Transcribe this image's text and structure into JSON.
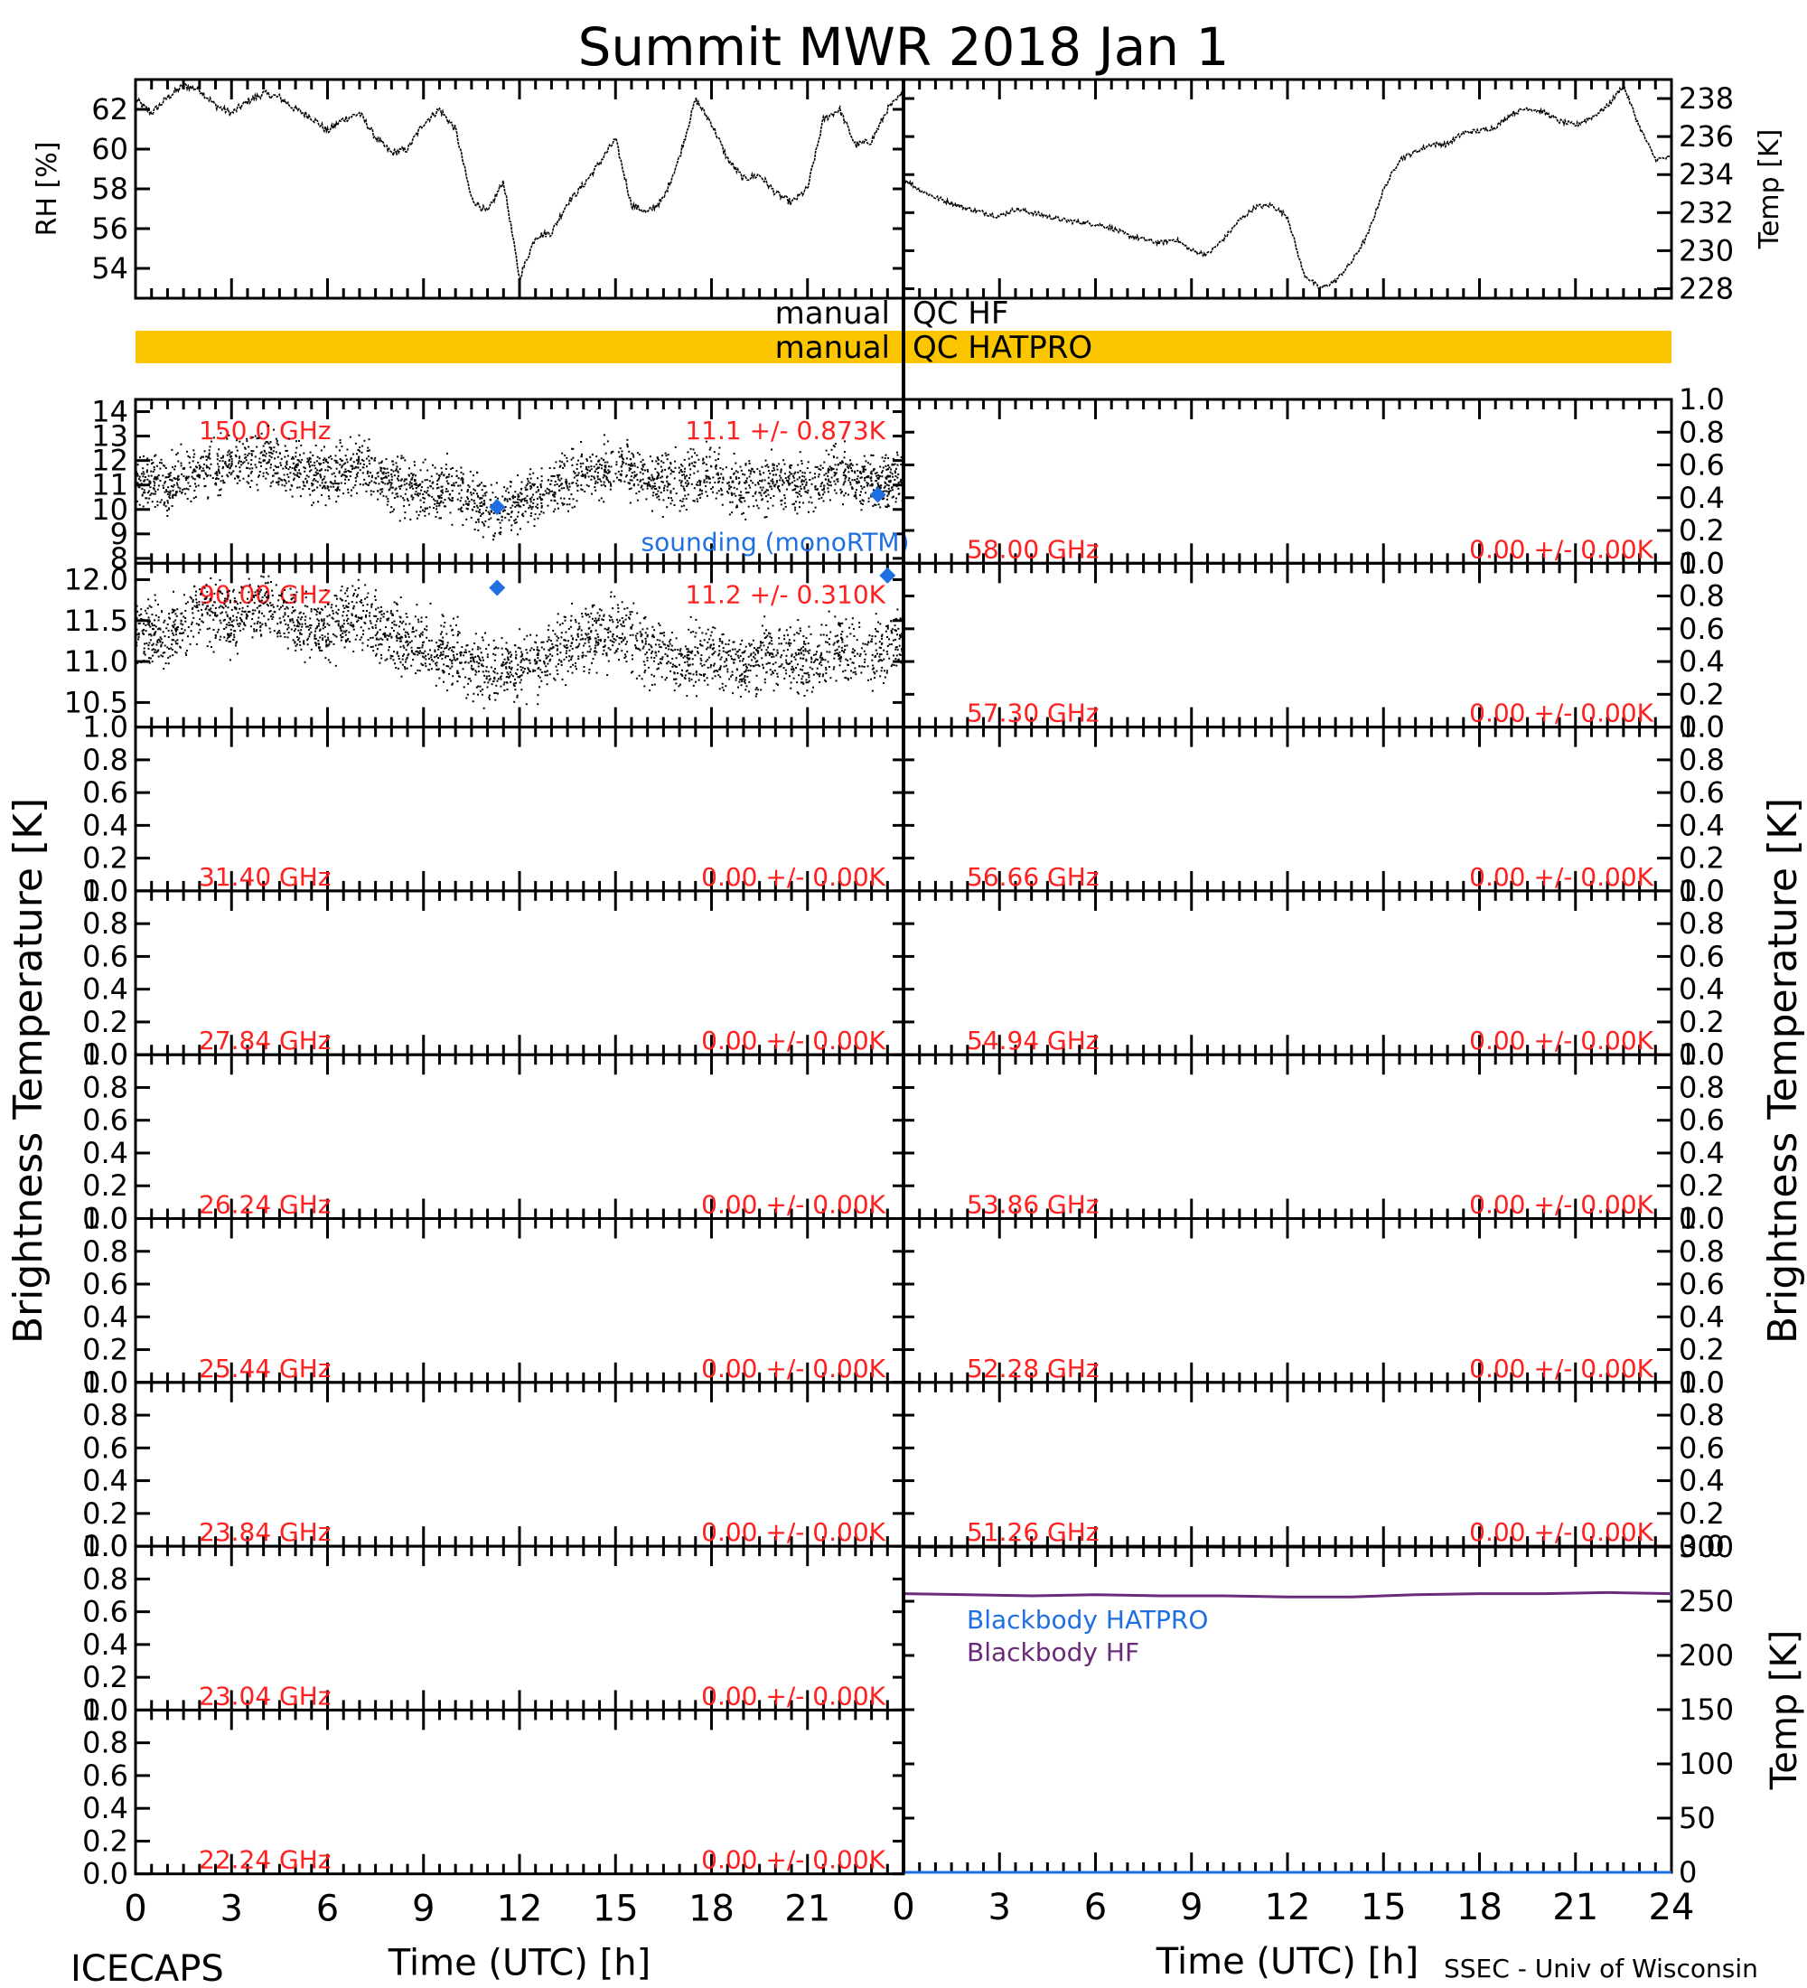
{
  "title": "Summit MWR 2018 Jan  1",
  "footer": {
    "left": "ICECAPS",
    "right": "SSEC - Univ of Wisconsin"
  },
  "side_labels": {
    "left": "Brightness Temperature [K]",
    "right": "Brightness Temperature [K]"
  },
  "qc": {
    "hf": {
      "left": "manual",
      "right": "QC HF",
      "color": ""
    },
    "hatpro": {
      "left": "manual",
      "right": "QC HATPRO",
      "color": "#fbc600"
    }
  },
  "colors": {
    "data": "#000000",
    "annotation": "#ff2020",
    "sounding": "#1f6fe0",
    "hatpro_bb": "#1f6fe0",
    "hf_bb": "#6a2a7a",
    "qc_bar": "#fbc600"
  },
  "chart_data": [
    {
      "id": "rh",
      "type": "line",
      "ylabel": "RH [%]",
      "yticks": [
        "54",
        "56",
        "58",
        "60",
        "62"
      ],
      "ylim": [
        52.5,
        63.5
      ],
      "xlim": [
        0,
        24
      ],
      "grid": false,
      "x": [
        0,
        0.5,
        1,
        1.5,
        2,
        2.5,
        3,
        3.5,
        4,
        4.5,
        5,
        5.5,
        6,
        6.5,
        7,
        7.5,
        8,
        8.5,
        9,
        9.5,
        10,
        10.5,
        11,
        11.5,
        12,
        12.5,
        13,
        13.5,
        14,
        14.5,
        15,
        15.5,
        16,
        16.5,
        17,
        17.5,
        18,
        18.5,
        19,
        19.5,
        20,
        20.5,
        21,
        21.5,
        22,
        22.5,
        23,
        23.5,
        24
      ],
      "y": [
        62.5,
        61.8,
        62.6,
        63.2,
        63.0,
        62.2,
        61.8,
        62.4,
        62.8,
        62.6,
        62.0,
        61.6,
        60.9,
        61.5,
        61.8,
        60.6,
        59.8,
        60.0,
        61.3,
        62.0,
        61.0,
        57.5,
        56.8,
        58.4,
        53.5,
        55.6,
        55.8,
        57.3,
        58.2,
        59.3,
        60.5,
        57.2,
        56.8,
        57.5,
        59.6,
        62.5,
        61.3,
        59.5,
        58.5,
        58.7,
        57.8,
        57.3,
        58.0,
        61.5,
        62.0,
        60.2,
        60.4,
        62.0,
        62.8
      ]
    },
    {
      "id": "air_temp",
      "type": "line",
      "ylabel": "Temp [K]",
      "yticks": [
        "228",
        "230",
        "232",
        "234",
        "236",
        "238"
      ],
      "ylim": [
        227.5,
        239.0
      ],
      "xlim": [
        0,
        24
      ],
      "grid": false,
      "x": [
        0,
        0.5,
        1,
        1.5,
        2,
        2.5,
        3,
        3.5,
        4,
        4.5,
        5,
        5.5,
        6,
        6.5,
        7,
        7.5,
        8,
        8.5,
        9,
        9.5,
        10,
        10.5,
        11,
        11.5,
        12,
        12.5,
        13,
        13.5,
        14,
        14.5,
        15,
        15.5,
        16,
        16.5,
        17,
        17.5,
        18,
        18.5,
        19,
        19.5,
        20,
        20.5,
        21,
        21.5,
        22,
        22.5,
        23,
        23.5,
        24
      ],
      "y": [
        233.8,
        233.2,
        232.8,
        232.5,
        232.2,
        232.0,
        231.8,
        232.2,
        232.0,
        231.8,
        231.6,
        231.5,
        231.4,
        231.2,
        230.8,
        230.6,
        230.4,
        230.6,
        230.0,
        229.8,
        230.6,
        231.6,
        232.3,
        232.4,
        231.8,
        228.8,
        228.0,
        228.4,
        229.4,
        230.8,
        233.2,
        234.8,
        235.2,
        235.6,
        235.6,
        236.2,
        236.3,
        236.5,
        237.2,
        237.5,
        237.3,
        236.8,
        236.6,
        237.0,
        237.6,
        238.7,
        236.5,
        234.8,
        234.9
      ]
    },
    {
      "id": "bt_150",
      "type": "scatter",
      "freq_label": "150.0 GHz",
      "stats": "11.1 +/- 0.873K",
      "yticks": [
        "8",
        "9",
        "10",
        "11",
        "12",
        "13",
        "14"
      ],
      "ylim": [
        7.8,
        14.5
      ],
      "xlim": [
        0,
        24
      ],
      "grid": false,
      "x": [
        0,
        1,
        2,
        3,
        4,
        5,
        6,
        7,
        8,
        9,
        10,
        11,
        12,
        13,
        14,
        15,
        16,
        17,
        18,
        19,
        20,
        21,
        22,
        23,
        24
      ],
      "y": [
        11.4,
        10.9,
        11.7,
        11.9,
        12.1,
        11.6,
        11.4,
        11.8,
        11.2,
        10.8,
        10.9,
        10.0,
        10.2,
        11.0,
        11.5,
        11.9,
        11.3,
        11.1,
        11.4,
        10.9,
        11.2,
        11.0,
        11.7,
        11.0,
        11.4
      ],
      "sounding": {
        "label": "sounding (monoRTM)",
        "x": [
          11.3,
          23.2
        ],
        "y": [
          10.1,
          10.6
        ]
      }
    },
    {
      "id": "bt_90",
      "type": "scatter",
      "freq_label": "90.00 GHz",
      "stats": "11.2 +/- 0.310K",
      "yticks": [
        "10.5",
        "11.0",
        "11.5",
        "12.0"
      ],
      "ylim": [
        10.2,
        12.2
      ],
      "xlim": [
        0,
        24
      ],
      "grid": false,
      "x": [
        0,
        1,
        2,
        3,
        4,
        5,
        6,
        7,
        8,
        9,
        10,
        11,
        12,
        13,
        14,
        15,
        16,
        17,
        18,
        19,
        20,
        21,
        22,
        23,
        24
      ],
      "y": [
        11.4,
        11.3,
        11.6,
        11.5,
        11.7,
        11.5,
        11.4,
        11.6,
        11.3,
        11.2,
        11.1,
        10.9,
        10.9,
        11.1,
        11.3,
        11.4,
        11.2,
        11.0,
        11.1,
        11.0,
        11.1,
        11.0,
        11.2,
        11.1,
        11.3
      ],
      "sounding": {
        "x": [
          11.3,
          23.5
        ],
        "y": [
          11.9,
          12.05
        ]
      }
    },
    {
      "id": "bt_31_40",
      "type": "scatter",
      "freq_label": "31.40 GHz",
      "stats": "0.00 +/- 0.00K",
      "yticks": [
        "0.0",
        "0.2",
        "0.4",
        "0.6",
        "0.8",
        "1.0"
      ],
      "ylim": [
        0,
        1
      ],
      "xlim": [
        0,
        24
      ]
    },
    {
      "id": "bt_27_84",
      "type": "scatter",
      "freq_label": "27.84 GHz",
      "stats": "0.00 +/- 0.00K",
      "yticks": [
        "0.0",
        "0.2",
        "0.4",
        "0.6",
        "0.8",
        "1.0"
      ],
      "ylim": [
        0,
        1
      ],
      "xlim": [
        0,
        24
      ]
    },
    {
      "id": "bt_26_24",
      "type": "scatter",
      "freq_label": "26.24 GHz",
      "stats": "0.00 +/- 0.00K",
      "yticks": [
        "0.0",
        "0.2",
        "0.4",
        "0.6",
        "0.8",
        "1.0"
      ],
      "ylim": [
        0,
        1
      ],
      "xlim": [
        0,
        24
      ]
    },
    {
      "id": "bt_25_44",
      "type": "scatter",
      "freq_label": "25.44 GHz",
      "stats": "0.00 +/- 0.00K",
      "yticks": [
        "0.0",
        "0.2",
        "0.4",
        "0.6",
        "0.8",
        "1.0"
      ],
      "ylim": [
        0,
        1
      ],
      "xlim": [
        0,
        24
      ]
    },
    {
      "id": "bt_23_84",
      "type": "scatter",
      "freq_label": "23.84 GHz",
      "stats": "0.00 +/- 0.00K",
      "yticks": [
        "0.0",
        "0.2",
        "0.4",
        "0.6",
        "0.8",
        "1.0"
      ],
      "ylim": [
        0,
        1
      ],
      "xlim": [
        0,
        24
      ]
    },
    {
      "id": "bt_23_04",
      "type": "scatter",
      "freq_label": "23.04 GHz",
      "stats": "0.00 +/- 0.00K",
      "yticks": [
        "0.0",
        "0.2",
        "0.4",
        "0.6",
        "0.8",
        "1.0"
      ],
      "ylim": [
        0,
        1
      ],
      "xlim": [
        0,
        24
      ]
    },
    {
      "id": "bt_22_24",
      "type": "scatter",
      "freq_label": "22.24 GHz",
      "stats": "0.00 +/- 0.00K",
      "yticks": [
        "0.0",
        "0.2",
        "0.4",
        "0.6",
        "0.8",
        "1.0"
      ],
      "ylim": [
        0,
        1
      ],
      "xlim": [
        0,
        24
      ],
      "xlabel": "Time (UTC) [h]",
      "xticks": [
        "0",
        "3",
        "6",
        "9",
        "12",
        "15",
        "18",
        "21"
      ]
    },
    {
      "id": "bt_58_00",
      "type": "scatter",
      "freq_label": "58.00 GHz",
      "stats": "0.00 +/- 0.00K",
      "yticks": [
        "0.0",
        "0.2",
        "0.4",
        "0.6",
        "0.8",
        "1.0"
      ],
      "ylim": [
        0,
        1
      ],
      "xlim": [
        0,
        24
      ]
    },
    {
      "id": "bt_57_30",
      "type": "scatter",
      "freq_label": "57.30 GHz",
      "stats": "0.00 +/- 0.00K",
      "yticks": [
        "0.0",
        "0.2",
        "0.4",
        "0.6",
        "0.8",
        "1.0"
      ],
      "ylim": [
        0,
        1
      ],
      "xlim": [
        0,
        24
      ]
    },
    {
      "id": "bt_56_66",
      "type": "scatter",
      "freq_label": "56.66 GHz",
      "stats": "0.00 +/- 0.00K",
      "yticks": [
        "0.0",
        "0.2",
        "0.4",
        "0.6",
        "0.8",
        "1.0"
      ],
      "ylim": [
        0,
        1
      ],
      "xlim": [
        0,
        24
      ]
    },
    {
      "id": "bt_54_94",
      "type": "scatter",
      "freq_label": "54.94 GHz",
      "stats": "0.00 +/- 0.00K",
      "yticks": [
        "0.0",
        "0.2",
        "0.4",
        "0.6",
        "0.8",
        "1.0"
      ],
      "ylim": [
        0,
        1
      ],
      "xlim": [
        0,
        24
      ]
    },
    {
      "id": "bt_53_86",
      "type": "scatter",
      "freq_label": "53.86 GHz",
      "stats": "0.00 +/- 0.00K",
      "yticks": [
        "0.0",
        "0.2",
        "0.4",
        "0.6",
        "0.8",
        "1.0"
      ],
      "ylim": [
        0,
        1
      ],
      "xlim": [
        0,
        24
      ]
    },
    {
      "id": "bt_52_28",
      "type": "scatter",
      "freq_label": "52.28 GHz",
      "stats": "0.00 +/- 0.00K",
      "yticks": [
        "0.0",
        "0.2",
        "0.4",
        "0.6",
        "0.8",
        "1.0"
      ],
      "ylim": [
        0,
        1
      ],
      "xlim": [
        0,
        24
      ]
    },
    {
      "id": "bt_51_26",
      "type": "scatter",
      "freq_label": "51.26 GHz",
      "stats": "0.00 +/- 0.00K",
      "yticks": [
        "0.0",
        "0.2",
        "0.4",
        "0.6",
        "0.8",
        "1.0"
      ],
      "ylim": [
        0,
        1
      ],
      "xlim": [
        0,
        24
      ]
    },
    {
      "id": "blackbody",
      "type": "line",
      "ylabel": "Temp [K]",
      "yticks": [
        "0",
        "50",
        "100",
        "150",
        "200",
        "250",
        "300"
      ],
      "ylim": [
        0,
        300
      ],
      "xlim": [
        0,
        24
      ],
      "xlabel": "Time (UTC) [h]",
      "xticks": [
        "0",
        "3",
        "6",
        "9",
        "12",
        "15",
        "18",
        "21",
        "24"
      ],
      "series": [
        {
          "name": "Blackbody HATPRO",
          "x": [
            0,
            24
          ],
          "y": [
            0,
            0
          ]
        },
        {
          "name": "Blackbody HF",
          "x": [
            0,
            2,
            4,
            6,
            8,
            10,
            12,
            14,
            16,
            18,
            20,
            22,
            24
          ],
          "y": [
            257,
            256,
            255,
            256,
            255,
            255,
            254,
            254,
            256,
            257,
            257,
            258,
            257
          ]
        }
      ]
    }
  ]
}
